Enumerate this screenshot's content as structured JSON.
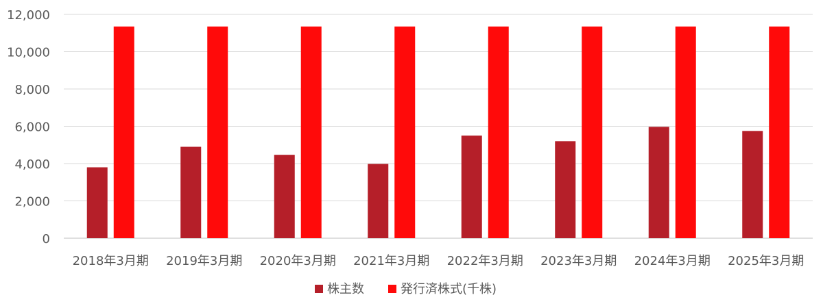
{
  "colors": {
    "series_1": "#b51f29",
    "series_2": "#ff0a0a",
    "grid": "#d9d9d9",
    "axis": "#bfbfbf",
    "text": "#595959"
  },
  "chart_data": {
    "type": "bar",
    "categories": [
      "2018年3月期",
      "2019年3月期",
      "2020年3月期",
      "2021年3月期",
      "2022年3月期",
      "2023年3月期",
      "2024年3月期",
      "2025年3月期"
    ],
    "series": [
      {
        "name": "株主数",
        "values": [
          3800,
          4900,
          4470,
          3980,
          5500,
          5200,
          5970,
          5750
        ]
      },
      {
        "name": "発行済株式(千株)",
        "values": [
          11350,
          11350,
          11350,
          11350,
          11350,
          11350,
          11350,
          11350
        ]
      }
    ],
    "ylim": [
      0,
      12000
    ],
    "yticks": [
      0,
      2000,
      4000,
      6000,
      8000,
      10000,
      12000
    ],
    "ytick_labels": [
      "0",
      "2,000",
      "4,000",
      "6,000",
      "8,000",
      "10,000",
      "12,000"
    ],
    "grid": true,
    "legend_position": "bottom"
  }
}
